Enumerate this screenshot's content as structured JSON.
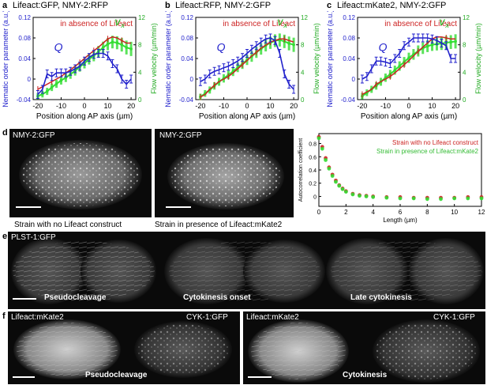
{
  "panel_a": {
    "letter": "a",
    "title": "Lifeact:GFP, NMY-2:RFP",
    "note": "in absence of Lifeact",
    "ylabel": "Nematic order parameter (a.u.)",
    "y2label": "Flow velocity (µm/min)",
    "xlabel": "Position along AP axis (µm)",
    "xticks": [
      "-20",
      "-10",
      "0",
      "10",
      "20"
    ],
    "yticks": [
      "-0.04",
      "0",
      "0.04",
      "0.08",
      "0.12"
    ],
    "y2ticks": [
      "0",
      "4",
      "8",
      "12"
    ],
    "q_label": "Q",
    "v_label": "v"
  },
  "panel_b": {
    "letter": "b",
    "title": "Lifeact:RFP, NMY-2:GFP",
    "note": "in absence of Lifeact",
    "ylabel": "Nematic order parameter (a.u.)",
    "y2label": "Flow velocity (µm/min)",
    "xlabel": "Position along AP axis (µm)",
    "xticks": [
      "-20",
      "-10",
      "0",
      "10",
      "20"
    ],
    "yticks": [
      "-0.04",
      "0",
      "0.04",
      "0.08",
      "0.12"
    ],
    "y2ticks": [
      "0",
      "4",
      "8",
      "12"
    ],
    "q_label": "Q",
    "v_label": "v"
  },
  "panel_c": {
    "letter": "c",
    "title": "Lifeact:mKate2, NMY-2:GFP",
    "note": "in absence of Lifeact",
    "ylabel": "Nematic order parameter (a.u.)",
    "y2label": "Flow velocity (µm/min)",
    "xlabel": "Position along AP axis (µm)",
    "xticks": [
      "-20",
      "-10",
      "0",
      "10",
      "20"
    ],
    "yticks": [
      "-0.04",
      "0",
      "0.04",
      "0.08",
      "0.12"
    ],
    "y2ticks": [
      "0",
      "4",
      "8",
      "12"
    ],
    "q_label": "Q",
    "v_label": "v"
  },
  "panel_d": {
    "letter": "d",
    "img1_label": "NMY-2:GFP",
    "img2_label": "NMY-2:GFP",
    "caption1": "Strain with no Lifeact construct",
    "caption2": "Strain in presence of Lifeact:mKate2",
    "legend1": "Strain with no Lifeact construct",
    "legend2": "Strain in presence of Lifeact:mKate2",
    "ylabel": "Autocorrelation coefficient",
    "xlabel": "Length (µm)",
    "xticks": [
      "0",
      "2",
      "4",
      "6",
      "8",
      "10",
      "12"
    ],
    "yticks": [
      "0",
      "0.2",
      "0.4",
      "0.6",
      "0.8"
    ]
  },
  "panel_e": {
    "letter": "e",
    "label": "PLST-1:GFP",
    "stage1": "Pseudocleavage",
    "stage2": "Cytokinesis onset",
    "stage3": "Late cytokinesis"
  },
  "panel_f": {
    "letter": "f",
    "left_label1": "Lifeact:mKate2",
    "left_label2": "CYK-1:GFP",
    "left_stage": "Pseudocleavage",
    "right_label1": "Lifeact:mKate2",
    "right_label2": "CYK-1:GFP",
    "right_stage": "Cytokinesis"
  },
  "colors": {
    "Q": "#2222cc",
    "flow": "#33dd33",
    "red": "#cc2222"
  },
  "chart_data": [
    {
      "type": "line",
      "panel": "a",
      "x": [
        -20,
        -18,
        -16,
        -14,
        -12,
        -10,
        -8,
        -6,
        -4,
        -2,
        0,
        2,
        4,
        6,
        8,
        10,
        12,
        14,
        16,
        18,
        20
      ],
      "series": [
        {
          "name": "Q",
          "values": [
            -0.03,
            -0.02,
            0.01,
            0.005,
            0.012,
            0.012,
            0.012,
            0.015,
            0.02,
            0.025,
            0.035,
            0.042,
            0.048,
            0.05,
            0.05,
            0.045,
            0.03,
            0.02,
            0.0,
            -0.01,
            0.0
          ]
        },
        {
          "values": [
            -0.02,
            -0.015,
            -0.01,
            -0.005,
            0.0,
            0.005,
            0.012,
            0.018,
            0.025,
            0.032,
            0.04,
            0.048,
            0.055,
            0.062,
            0.07,
            0.078,
            0.082,
            0.08,
            0.075,
            0.07,
            0.07
          ]
        },
        {
          "name": "vx",
          "values": [
            0.5,
            0.8,
            1.2,
            1.8,
            2.3,
            2.8,
            3.2,
            3.7,
            4.2,
            4.8,
            5.3,
            5.9,
            6.4,
            7.0,
            7.6,
            8.1,
            8.4,
            8.3,
            8.0,
            7.6,
            7.4
          ]
        }
      ],
      "ylim": [
        -0.04,
        0.12
      ],
      "y2lim": [
        0,
        12
      ]
    },
    {
      "type": "line",
      "panel": "b",
      "x": [
        -20,
        -18,
        -16,
        -14,
        -12,
        -10,
        -8,
        -6,
        -4,
        -2,
        0,
        2,
        4,
        6,
        8,
        10,
        12,
        14,
        16,
        18,
        20
      ],
      "series": [
        {
          "name": "Q",
          "values": [
            -0.005,
            0.0,
            0.01,
            0.015,
            0.018,
            0.022,
            0.025,
            0.03,
            0.035,
            0.042,
            0.05,
            0.058,
            0.065,
            0.072,
            0.078,
            0.08,
            0.075,
            0.05,
            0.01,
            -0.01,
            -0.02
          ]
        },
        {
          "values": [
            -0.035,
            -0.03,
            -0.02,
            -0.012,
            -0.005,
            0.0,
            0.005,
            0.012,
            0.02,
            0.028,
            0.036,
            0.045,
            0.052,
            0.06,
            0.066,
            0.072,
            0.075,
            0.078,
            0.078,
            0.075,
            0.072
          ]
        },
        {
          "name": "vx",
          "values": [
            0.4,
            0.9,
            1.4,
            2.0,
            2.6,
            3.1,
            3.6,
            4.1,
            4.7,
            5.2,
            5.8,
            6.3,
            6.9,
            7.4,
            7.9,
            8.3,
            8.6,
            8.7,
            8.5,
            8.2,
            8.0
          ]
        }
      ],
      "ylim": [
        -0.04,
        0.12
      ],
      "y2lim": [
        0,
        12
      ]
    },
    {
      "type": "line",
      "panel": "c",
      "x": [
        -20,
        -18,
        -16,
        -14,
        -12,
        -10,
        -8,
        -6,
        -4,
        -2,
        0,
        2,
        4,
        6,
        8,
        10,
        12,
        14,
        16,
        18,
        20
      ],
      "series": [
        {
          "name": "Q",
          "values": [
            0.0,
            0.005,
            0.02,
            0.035,
            0.035,
            0.033,
            0.03,
            0.04,
            0.05,
            0.065,
            0.072,
            0.08,
            0.08,
            0.08,
            0.08,
            0.078,
            0.075,
            0.07,
            0.065,
            0.04,
            0.04
          ]
        },
        {
          "values": [
            -0.03,
            -0.025,
            -0.02,
            -0.01,
            -0.005,
            0.0,
            0.005,
            0.012,
            0.02,
            0.028,
            0.036,
            0.045,
            0.054,
            0.062,
            0.07,
            0.078,
            0.082,
            0.082,
            0.08,
            0.078,
            0.078
          ]
        },
        {
          "name": "vx",
          "values": [
            0.5,
            1.0,
            1.5,
            2.0,
            2.6,
            3.2,
            3.7,
            4.3,
            4.9,
            5.5,
            6.1,
            6.6,
            7.1,
            7.5,
            7.8,
            8.0,
            8.1,
            8.2,
            8.3,
            8.4,
            8.5
          ]
        }
      ],
      "ylim": [
        -0.04,
        0.12
      ],
      "y2lim": [
        0,
        12
      ]
    },
    {
      "type": "scatter",
      "panel": "d",
      "x": [
        0,
        0.25,
        0.5,
        0.75,
        1,
        1.25,
        1.5,
        1.75,
        2,
        2.5,
        3,
        3.5,
        4,
        5,
        6,
        7,
        8,
        9,
        10,
        11,
        12
      ],
      "series": [
        {
          "name": "Strain with no Lifeact construct",
          "values": [
            0.9,
            0.75,
            0.58,
            0.44,
            0.33,
            0.24,
            0.17,
            0.12,
            0.08,
            0.04,
            0.02,
            0.01,
            0.0,
            -0.01,
            -0.01,
            -0.02,
            -0.02,
            -0.02,
            -0.02,
            -0.01,
            -0.01
          ]
        },
        {
          "name": "Strain in presence of Lifeact:mKate2",
          "values": [
            0.88,
            0.72,
            0.55,
            0.42,
            0.31,
            0.22,
            0.16,
            0.11,
            0.07,
            0.03,
            0.01,
            0.0,
            -0.01,
            -0.02,
            -0.03,
            -0.03,
            -0.04,
            -0.04,
            -0.03,
            -0.03,
            -0.03
          ]
        }
      ],
      "xlim": [
        0,
        12
      ],
      "ylim": [
        -0.15,
        0.95
      ]
    }
  ]
}
